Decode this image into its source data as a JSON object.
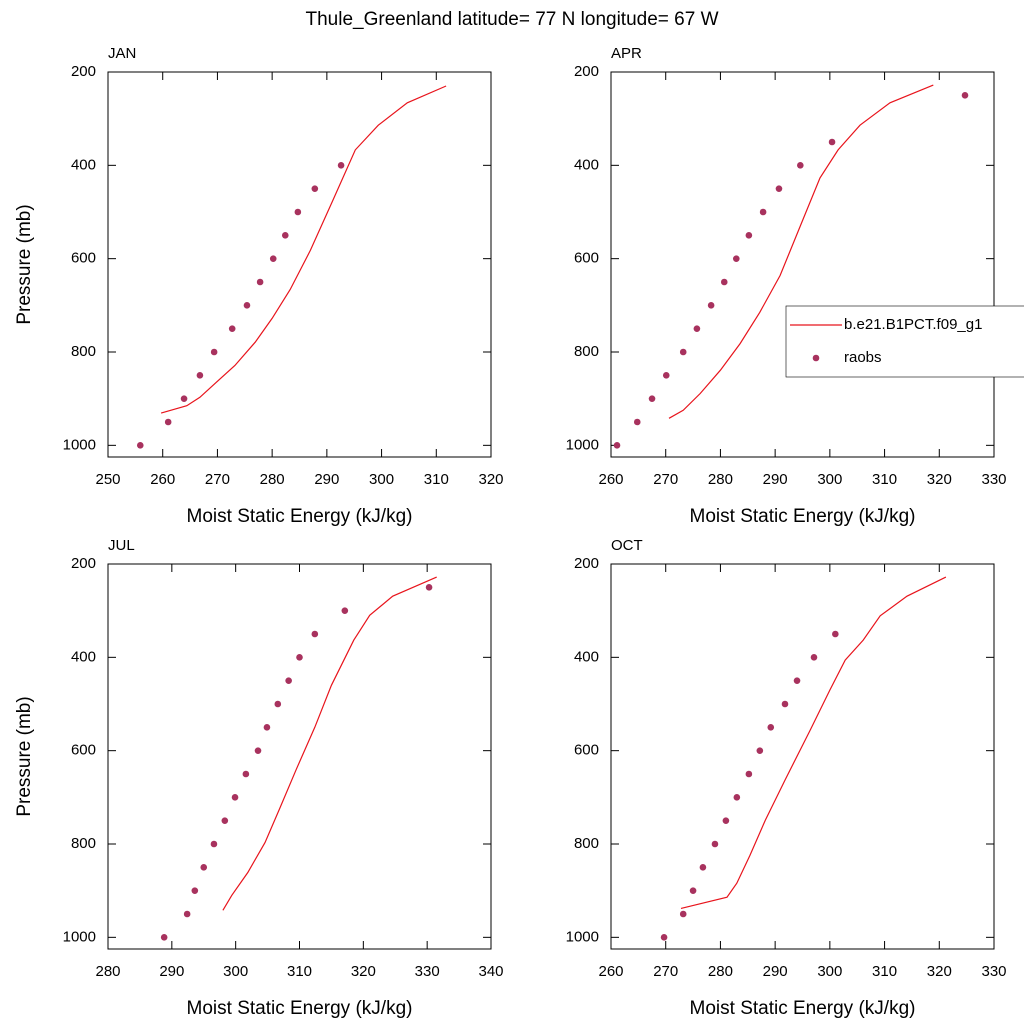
{
  "title": "Thule_Greenland  latitude= 77 N longitude= 67 W",
  "chart_data": [
    {
      "type": "line",
      "title": "JAN",
      "xlabel": "Moist Static Energy (kJ/kg)",
      "ylabel": "Pressure (mb)",
      "xlim": [
        250,
        320
      ],
      "xticks": [
        250,
        260,
        270,
        280,
        290,
        300,
        310,
        320
      ],
      "ylim": [
        1025,
        200
      ],
      "yticks": [
        200,
        400,
        600,
        800,
        1000
      ],
      "series": [
        {
          "mode": "line",
          "color": "#e8141c",
          "x": [
            259.7,
            264.4,
            266.8,
            269.6,
            273.2,
            276.9,
            280.0,
            283.3,
            287.0,
            291.1,
            295.2,
            299.4,
            304.7,
            311.8
          ],
          "values": [
            931,
            915,
            897,
            867,
            829,
            779,
            728,
            666,
            582,
            475,
            367,
            314,
            266,
            230
          ]
        },
        {
          "mode": "markers",
          "color": "#a8325e",
          "x": [
            255.9,
            261.0,
            263.9,
            266.8,
            269.4,
            272.7,
            275.4,
            277.8,
            280.2,
            282.4,
            284.7,
            287.8,
            292.6
          ],
          "values": [
            1000,
            950,
            900,
            850,
            800,
            750,
            700,
            650,
            600,
            550,
            500,
            450,
            400
          ]
        }
      ]
    },
    {
      "type": "line",
      "title": "APR",
      "xlabel": "Moist Static Energy (kJ/kg)",
      "legend": "right",
      "xlim": [
        260,
        330
      ],
      "xticks": [
        260,
        270,
        280,
        290,
        300,
        310,
        320,
        330
      ],
      "ylim": [
        1025,
        200
      ],
      "yticks": [
        200,
        400,
        600,
        800,
        1000
      ],
      "series": [
        {
          "name": "b.e21.B1PCT.f09_g1",
          "mode": "line",
          "color": "#e8141c",
          "x": [
            270.6,
            273.2,
            276.3,
            280.0,
            283.6,
            287.2,
            290.9,
            294.6,
            298.2,
            301.5,
            305.5,
            311.0,
            318.9
          ],
          "values": [
            942,
            925,
            889,
            839,
            782,
            715,
            636,
            530,
            427,
            367,
            314,
            266,
            228
          ]
        },
        {
          "name": "raobs",
          "mode": "markers",
          "color": "#a8325e",
          "x": [
            261.1,
            264.8,
            267.5,
            270.1,
            273.2,
            275.7,
            278.3,
            280.7,
            282.9,
            285.2,
            287.8,
            290.7,
            294.6,
            300.4,
            324.7
          ],
          "values": [
            1000,
            950,
            900,
            850,
            800,
            750,
            700,
            650,
            600,
            550,
            500,
            450,
            400,
            350,
            250
          ]
        }
      ]
    },
    {
      "type": "line",
      "title": "JUL",
      "xlabel": "Moist Static Energy (kJ/kg)",
      "ylabel": "Pressure (mb)",
      "xlim": [
        280,
        340
      ],
      "xticks": [
        280,
        290,
        300,
        310,
        320,
        330,
        340
      ],
      "ylim": [
        1025,
        200
      ],
      "yticks": [
        200,
        400,
        600,
        800,
        1000
      ],
      "series": [
        {
          "mode": "line",
          "color": "#e8141c",
          "x": [
            298.0,
            299.4,
            301.9,
            304.6,
            306.9,
            309.5,
            312.4,
            315.0,
            318.5,
            321.0,
            324.6,
            331.5
          ],
          "values": [
            942,
            910,
            861,
            797,
            724,
            640,
            550,
            460,
            363,
            310,
            269,
            228
          ]
        },
        {
          "mode": "markers",
          "color": "#a8325e",
          "x": [
            288.8,
            292.4,
            293.6,
            295.0,
            296.6,
            298.3,
            299.9,
            301.6,
            303.5,
            304.9,
            306.6,
            308.3,
            310.0,
            312.4,
            317.1,
            330.3
          ],
          "values": [
            1000,
            950,
            900,
            850,
            800,
            750,
            700,
            650,
            600,
            550,
            500,
            450,
            400,
            350,
            300,
            250
          ]
        }
      ]
    },
    {
      "type": "line",
      "title": "OCT",
      "xlabel": "Moist Static Energy (kJ/kg)",
      "xlim": [
        260,
        330
      ],
      "xticks": [
        260,
        270,
        280,
        290,
        300,
        310,
        320,
        330
      ],
      "ylim": [
        1025,
        200
      ],
      "yticks": [
        200,
        400,
        600,
        800,
        1000
      ],
      "series": [
        {
          "mode": "line",
          "color": "#e8141c",
          "x": [
            272.8,
            281.2,
            283.0,
            285.4,
            288.2,
            291.8,
            296.4,
            300.0,
            302.8,
            306.1,
            309.2,
            314.1,
            321.2
          ],
          "values": [
            938,
            914,
            884,
            824,
            749,
            663,
            556,
            470,
            406,
            363,
            311,
            269,
            228
          ]
        },
        {
          "mode": "markers",
          "color": "#a8325e",
          "x": [
            269.7,
            273.2,
            275.0,
            276.8,
            279.0,
            281.0,
            283.0,
            285.2,
            287.2,
            289.2,
            291.8,
            294.0,
            297.1,
            301.0
          ],
          "values": [
            1000,
            950,
            900,
            850,
            800,
            750,
            700,
            650,
            600,
            550,
            500,
            450,
            400,
            350
          ]
        }
      ]
    }
  ]
}
